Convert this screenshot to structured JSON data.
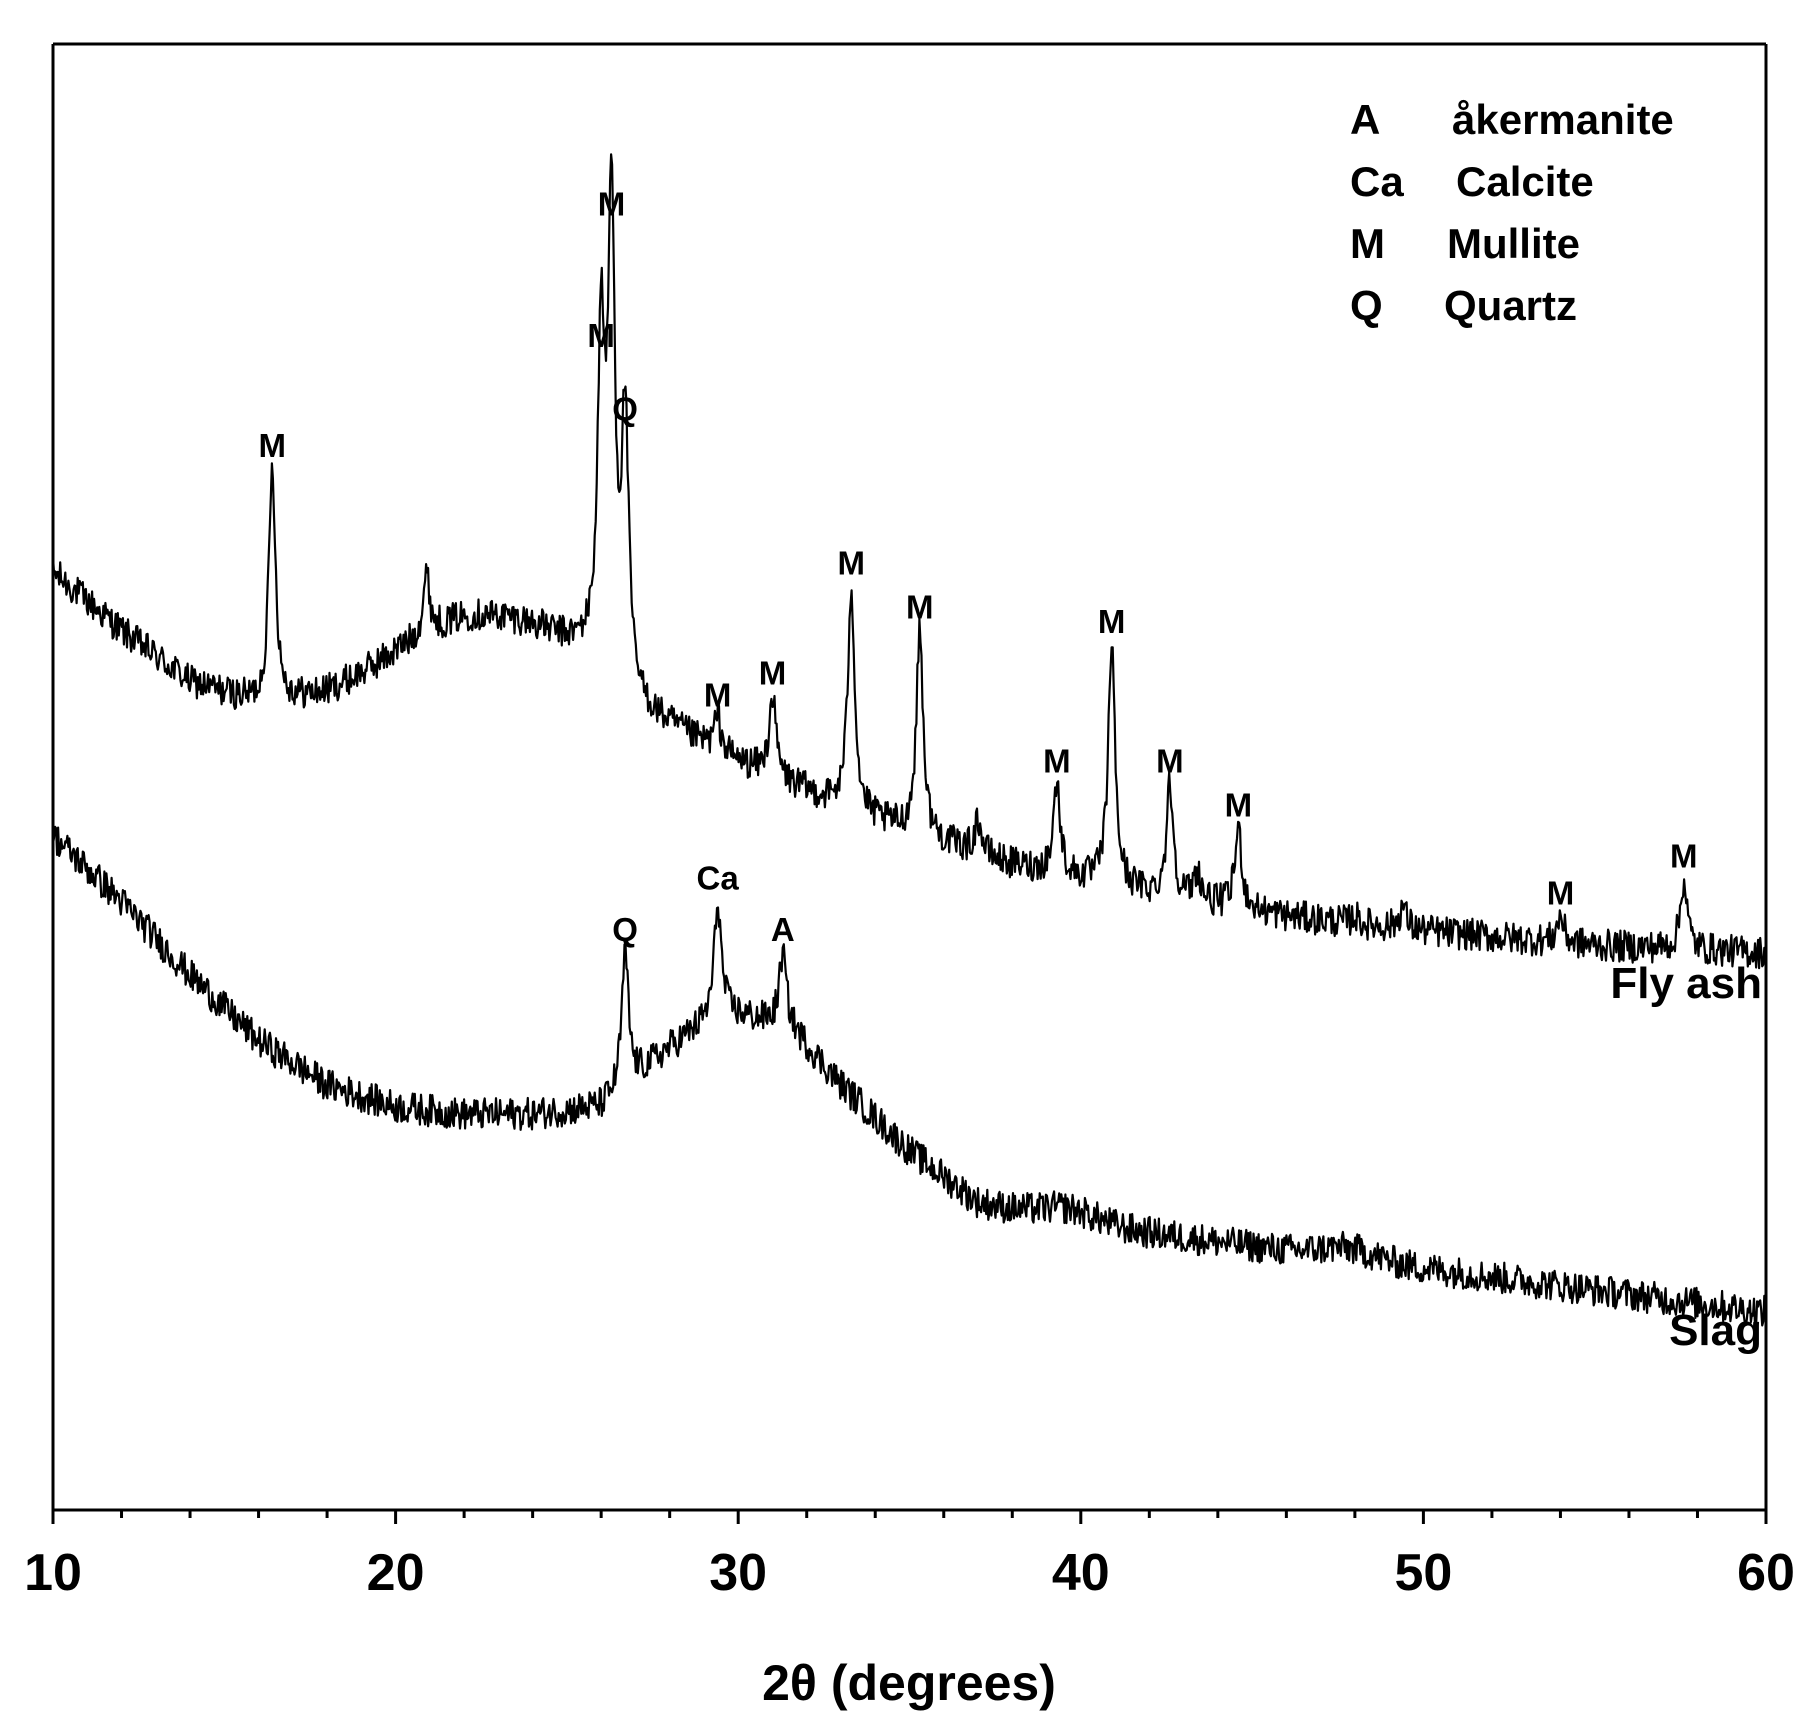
{
  "chart_data": {
    "type": "line",
    "title": "",
    "xlabel": "2θ (degrees)",
    "ylabel": "",
    "xlim": [
      10,
      60
    ],
    "ylim": [
      0,
      100
    ],
    "x_ticks": [
      10,
      20,
      30,
      40,
      50,
      60
    ],
    "x_tick_labels": [
      "10",
      "20",
      "30",
      "40",
      "50",
      "60"
    ],
    "y_ticks_shown": false,
    "grid": false,
    "legend": {
      "position": "top-right",
      "entries": [
        {
          "symbol": "A",
          "phase": "åkermanite"
        },
        {
          "symbol": "Ca",
          "phase": "Calcite"
        },
        {
          "symbol": "M",
          "phase": "Mullite"
        },
        {
          "symbol": "Q",
          "phase": "Quartz"
        }
      ]
    },
    "series": [
      {
        "name": "Fly ash",
        "baseline": [
          [
            10,
            64
          ],
          [
            12,
            60
          ],
          [
            14,
            56.5
          ],
          [
            16,
            55
          ],
          [
            18,
            55.5
          ],
          [
            20,
            57
          ],
          [
            22,
            58
          ],
          [
            24,
            58
          ],
          [
            25.5,
            57.5
          ],
          [
            27,
            54.5
          ],
          [
            30,
            51
          ],
          [
            34,
            47
          ],
          [
            38,
            44
          ],
          [
            42,
            42
          ],
          [
            46,
            40.5
          ],
          [
            50,
            39.5
          ],
          [
            55,
            38.5
          ],
          [
            60,
            38
          ]
        ],
        "humps": [
          [
            22.5,
            3.0,
            2.2
          ]
        ],
        "peaks": [
          {
            "x": 16.4,
            "y": 71,
            "label": "M"
          },
          {
            "x": 20.9,
            "y": 61.5,
            "label": ""
          },
          {
            "x": 26.0,
            "y": 78.5,
            "label": "M"
          },
          {
            "x": 26.3,
            "y": 87.5,
            "label": "M"
          },
          {
            "x": 26.7,
            "y": 73.5,
            "label": "Q"
          },
          {
            "x": 29.4,
            "y": 54,
            "label": "M"
          },
          {
            "x": 31.0,
            "y": 55.5,
            "label": "M"
          },
          {
            "x": 33.3,
            "y": 63,
            "label": "M"
          },
          {
            "x": 35.3,
            "y": 60,
            "label": "M"
          },
          {
            "x": 37.0,
            "y": 47,
            "label": ""
          },
          {
            "x": 39.3,
            "y": 49.5,
            "label": "M"
          },
          {
            "x": 40.9,
            "y": 59,
            "label": "M"
          },
          {
            "x": 42.6,
            "y": 49.5,
            "label": "M"
          },
          {
            "x": 43.4,
            "y": 43.5,
            "label": ""
          },
          {
            "x": 44.6,
            "y": 46.5,
            "label": "M"
          },
          {
            "x": 48.0,
            "y": 40.5,
            "label": ""
          },
          {
            "x": 49.4,
            "y": 41.2,
            "label": ""
          },
          {
            "x": 54.0,
            "y": 40.5,
            "label": "M"
          },
          {
            "x": 57.6,
            "y": 43,
            "label": "M"
          }
        ]
      },
      {
        "name": "Slag",
        "baseline": [
          [
            10,
            46
          ],
          [
            12,
            41.5
          ],
          [
            14,
            36.5
          ],
          [
            16,
            32
          ],
          [
            18,
            29
          ],
          [
            20,
            27.5
          ],
          [
            22,
            27
          ],
          [
            24,
            27
          ],
          [
            26,
            27.5
          ],
          [
            28,
            31.5
          ],
          [
            29.5,
            34
          ],
          [
            31.5,
            33
          ],
          [
            33,
            29
          ],
          [
            35,
            24.5
          ],
          [
            37,
            21
          ],
          [
            40,
            19.5
          ],
          [
            45,
            18
          ],
          [
            50,
            16.5
          ],
          [
            55,
            15
          ],
          [
            60,
            13.5
          ]
        ],
        "humps": [
          [
            39.7,
            0.9,
            0.8
          ],
          [
            47.8,
            0.7,
            0.8
          ]
        ],
        "peaks": [
          {
            "x": 26.7,
            "y": 38,
            "label": "Q"
          },
          {
            "x": 29.4,
            "y": 41.5,
            "label": "Ca"
          },
          {
            "x": 31.3,
            "y": 38,
            "label": "A"
          }
        ]
      }
    ]
  }
}
